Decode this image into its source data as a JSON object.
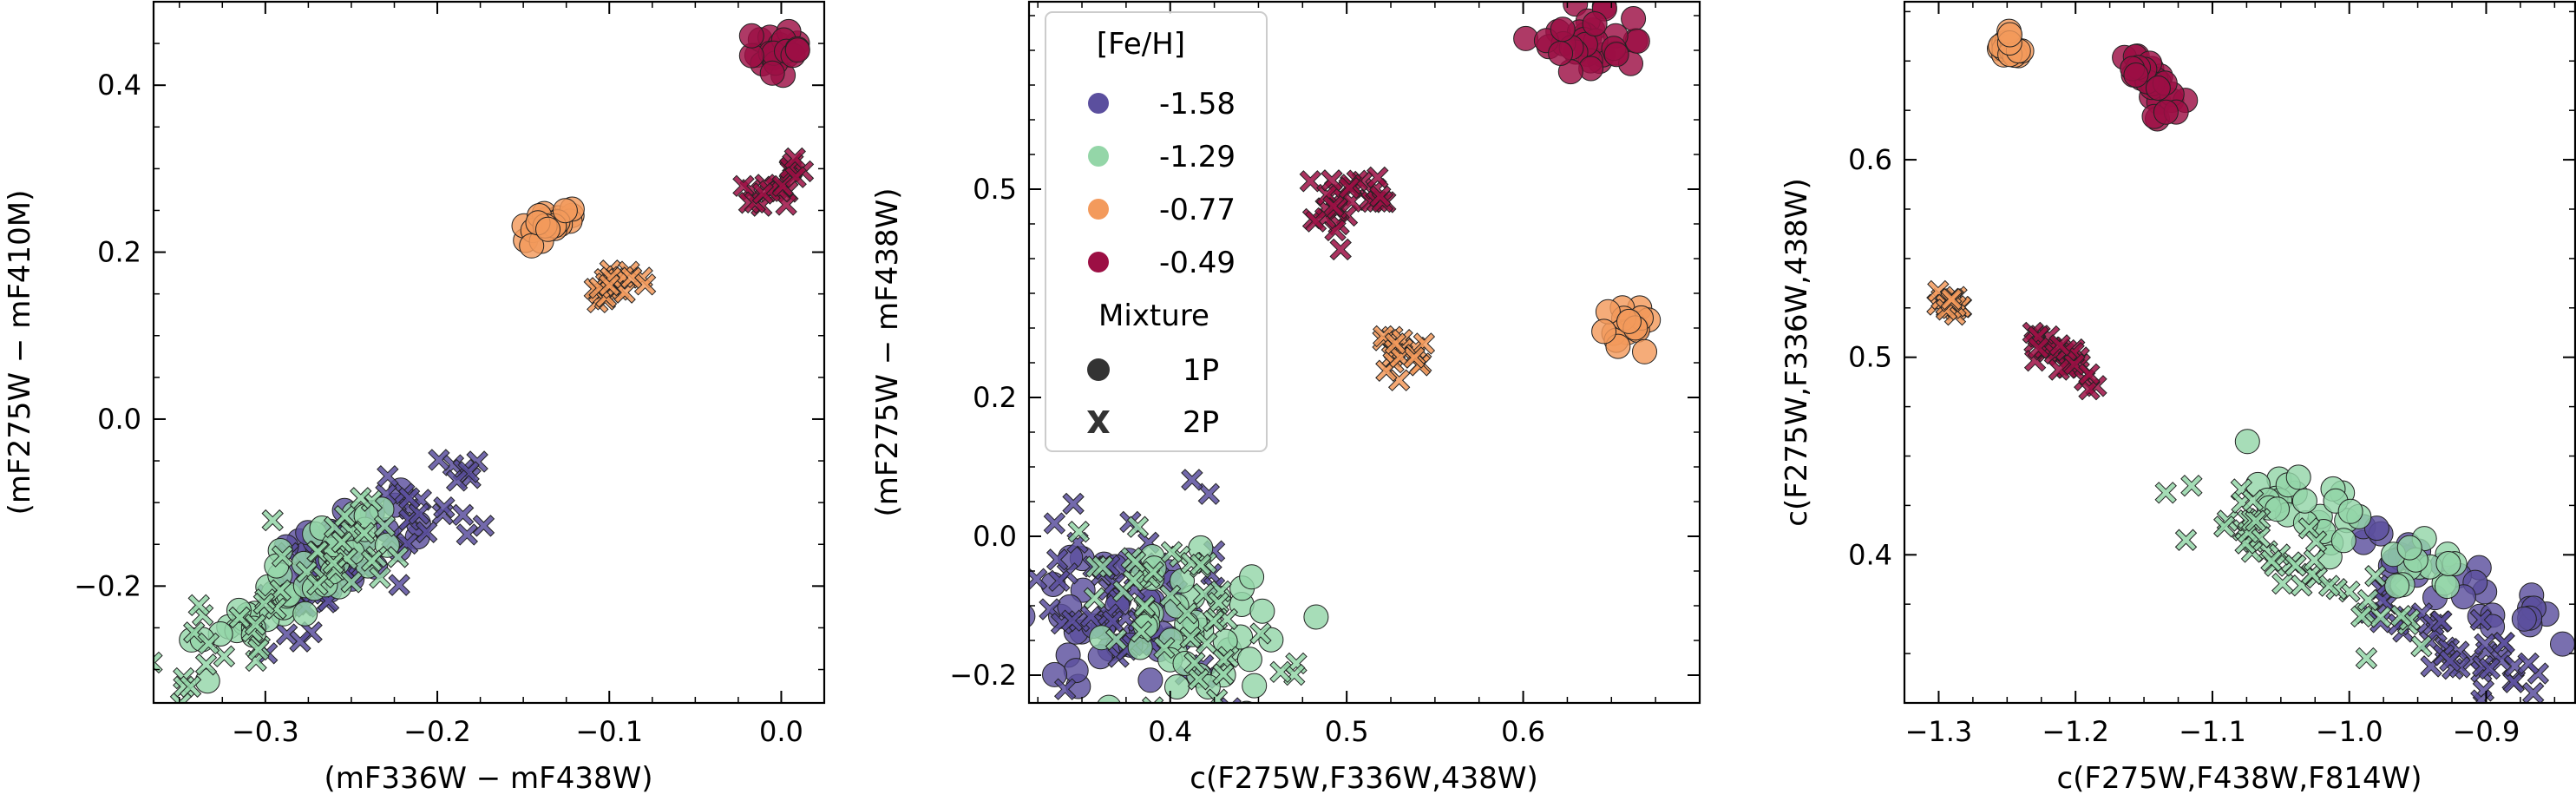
{
  "chart_data": [
    {
      "type": "scatter",
      "xlabel": "(mF336W − mF438W)",
      "ylabel": "(mF275W − mF410M)",
      "xlim": [
        -0.365,
        0.025
      ],
      "ylim": [
        -0.34,
        0.5
      ],
      "xticks": [
        -0.3,
        -0.2,
        -0.1,
        0.0
      ],
      "xtick_labels": [
        "−0.3",
        "−0.2",
        "−0.1",
        "0.0"
      ],
      "yticks": [
        -0.2,
        0.0,
        0.2,
        0.4
      ],
      "ytick_labels": [
        "−0.2",
        "0.0",
        "0.2",
        "0.4"
      ],
      "clusters": [
        {
          "feh": "-1.58",
          "pop": "1P",
          "x1": -0.3,
          "y1": -0.21,
          "x2": -0.22,
          "y2": -0.11,
          "w": 0.012,
          "n": 40
        },
        {
          "feh": "-1.58",
          "pop": "2P",
          "x1": -0.31,
          "y1": -0.25,
          "x2": -0.18,
          "y2": -0.075,
          "w": 0.014,
          "n": 45
        },
        {
          "feh": "-1.29",
          "pop": "1P",
          "x1": -0.34,
          "y1": -0.27,
          "x2": -0.23,
          "y2": -0.13,
          "w": 0.01,
          "n": 45
        },
        {
          "feh": "-1.29",
          "pop": "2P",
          "x1": -0.35,
          "y1": -0.3,
          "x2": -0.23,
          "y2": -0.13,
          "w": 0.012,
          "n": 45
        },
        {
          "feh": "-0.77",
          "pop": "1P",
          "x1": -0.145,
          "y1": 0.215,
          "x2": -0.12,
          "y2": 0.245,
          "w": 0.004,
          "n": 22
        },
        {
          "feh": "-0.77",
          "pop": "2P",
          "x1": -0.11,
          "y1": 0.14,
          "x2": -0.085,
          "y2": 0.175,
          "w": 0.004,
          "n": 22
        },
        {
          "feh": "-0.49",
          "pop": "1P",
          "x1": -0.01,
          "y1": 0.43,
          "x2": 0.005,
          "y2": 0.455,
          "w": 0.005,
          "n": 22
        },
        {
          "feh": "-0.49",
          "pop": "2P",
          "x1": -0.015,
          "y1": 0.27,
          "x2": 0.01,
          "y2": 0.295,
          "w": 0.004,
          "n": 22
        }
      ]
    },
    {
      "type": "scatter",
      "xlabel": "c(F275W,F336W,438W)",
      "ylabel": "(mF275W − mF438W)",
      "xlim": [
        0.32,
        0.7
      ],
      "ylim": [
        -0.24,
        0.77
      ],
      "xticks": [
        0.4,
        0.5,
        0.6
      ],
      "xtick_labels": [
        "0.4",
        "0.5",
        "0.6"
      ],
      "yticks": [
        -0.2,
        0.0,
        0.2,
        0.5
      ],
      "ytick_labels": [
        "−0.2",
        "0.0",
        "0.2",
        "0.5"
      ],
      "clusters": [
        {
          "feh": "-1.58",
          "pop": "1P",
          "x1": 0.345,
          "y1": -0.08,
          "x2": 0.39,
          "y2": -0.12,
          "w": 0.02,
          "n": 40
        },
        {
          "feh": "-1.58",
          "pop": "2P",
          "x1": 0.34,
          "y1": -0.05,
          "x2": 0.4,
          "y2": -0.15,
          "w": 0.025,
          "n": 45
        },
        {
          "feh": "-1.29",
          "pop": "1P",
          "x1": 0.395,
          "y1": -0.08,
          "x2": 0.44,
          "y2": -0.17,
          "w": 0.02,
          "n": 40
        },
        {
          "feh": "-1.29",
          "pop": "2P",
          "x1": 0.385,
          "y1": -0.06,
          "x2": 0.43,
          "y2": -0.2,
          "w": 0.022,
          "n": 45
        },
        {
          "feh": "-0.77",
          "pop": "1P",
          "x1": 0.655,
          "y1": 0.29,
          "x2": 0.66,
          "y2": 0.31,
          "w": 0.006,
          "n": 18
        },
        {
          "feh": "-0.77",
          "pop": "2P",
          "x1": 0.525,
          "y1": 0.28,
          "x2": 0.53,
          "y2": 0.25,
          "w": 0.006,
          "n": 18
        },
        {
          "feh": "-0.49",
          "pop": "1P",
          "x1": 0.615,
          "y1": 0.7,
          "x2": 0.655,
          "y2": 0.73,
          "w": 0.01,
          "n": 35
        },
        {
          "feh": "-0.49",
          "pop": "2P",
          "x1": 0.485,
          "y1": 0.48,
          "x2": 0.515,
          "y2": 0.5,
          "w": 0.01,
          "n": 30
        }
      ],
      "legend": {
        "position": "upper-left",
        "title_feh": "[Fe/H]",
        "entries": [
          {
            "label": "-1.58",
            "color": "#5b4f9e"
          },
          {
            "label": "-1.29",
            "color": "#94d6a8"
          },
          {
            "label": "-0.77",
            "color": "#f39a5c"
          },
          {
            "label": "-0.49",
            "color": "#9c0f44"
          }
        ],
        "title_mix": "Mixture",
        "markers": [
          {
            "label": "1P",
            "shape": "circle"
          },
          {
            "label": "2P",
            "shape": "cross"
          }
        ]
      }
    },
    {
      "type": "scatter",
      "xlabel": "c(F275W,F438W,F814W)",
      "ylabel": "c(F275W,F336W,438W)",
      "xlim": [
        -1.325,
        -0.835
      ],
      "ylim": [
        0.325,
        0.68
      ],
      "xticks": [
        -1.3,
        -1.2,
        -1.1,
        -1.0,
        -0.9
      ],
      "xtick_labels": [
        "−1.3",
        "−1.2",
        "−1.1",
        "−1.0",
        "−0.9"
      ],
      "yticks": [
        0.4,
        0.5,
        0.6
      ],
      "ytick_labels": [
        "0.4",
        "0.5",
        "0.6"
      ],
      "clusters": [
        {
          "feh": "-1.58",
          "pop": "1P",
          "x1": -0.99,
          "y1": 0.41,
          "x2": -0.855,
          "y2": 0.365,
          "w": 0.008,
          "n": 30
        },
        {
          "feh": "-1.58",
          "pop": "2P",
          "x1": -0.99,
          "y1": 0.38,
          "x2": -0.87,
          "y2": 0.335,
          "w": 0.01,
          "n": 45
        },
        {
          "feh": "-1.29",
          "pop": "1P",
          "x1": -1.08,
          "y1": 0.44,
          "x2": -0.93,
          "y2": 0.385,
          "w": 0.012,
          "n": 40
        },
        {
          "feh": "-1.29",
          "pop": "2P",
          "x1": -1.11,
          "y1": 0.43,
          "x2": -0.97,
          "y2": 0.365,
          "w": 0.014,
          "n": 45
        },
        {
          "feh": "-0.77",
          "pop": "1P",
          "x1": -1.255,
          "y1": 0.66,
          "x2": -1.245,
          "y2": 0.655,
          "w": 0.004,
          "n": 18
        },
        {
          "feh": "-0.77",
          "pop": "2P",
          "x1": -1.3,
          "y1": 0.53,
          "x2": -1.285,
          "y2": 0.525,
          "w": 0.004,
          "n": 18
        },
        {
          "feh": "-0.49",
          "pop": "1P",
          "x1": -1.16,
          "y1": 0.65,
          "x2": -1.125,
          "y2": 0.625,
          "w": 0.006,
          "n": 30
        },
        {
          "feh": "-0.49",
          "pop": "2P",
          "x1": -1.23,
          "y1": 0.51,
          "x2": -1.185,
          "y2": 0.485,
          "w": 0.005,
          "n": 30
        }
      ]
    }
  ]
}
